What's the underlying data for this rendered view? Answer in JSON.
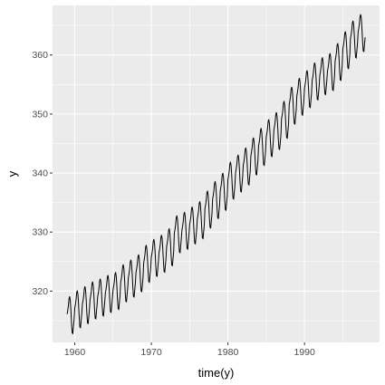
{
  "chart_data": {
    "type": "line",
    "xlabel": "time(y)",
    "ylabel": "y",
    "xlim": [
      1957.1,
      1999.8
    ],
    "ylim": [
      311.3,
      368.4
    ],
    "x_ticks": [
      1960,
      1970,
      1980,
      1990
    ],
    "y_ticks": [
      320,
      330,
      340,
      350,
      360
    ],
    "x_minor_ticks": [
      1965,
      1975,
      1985,
      1995
    ],
    "y_minor_ticks": [
      315,
      325,
      335,
      345,
      355,
      365
    ],
    "grid": true,
    "background": "#EBEBEB",
    "gridline_color": "#FFFFFF",
    "line_color": "#000000",
    "series": [
      {
        "x_start": 1959.0,
        "step": 0.0833333,
        "seasonal_cycle": [
          0.2,
          0.8,
          1.6,
          2.8,
          3.2,
          2.5,
          0.8,
          -1.4,
          -3.0,
          -3.1,
          -1.9,
          -0.7
        ],
        "annual_means": [
          315.9,
          316.9,
          317.6,
          318.4,
          318.9,
          319.5,
          320.0,
          321.3,
          322.1,
          323.0,
          324.6,
          325.6,
          326.3,
          327.4,
          329.6,
          330.2,
          331.1,
          332.0,
          333.8,
          335.4,
          336.8,
          338.7,
          339.9,
          341.1,
          342.8,
          344.4,
          345.9,
          347.1,
          349.0,
          351.4,
          352.9,
          354.2,
          355.5,
          356.4,
          357.1,
          358.8,
          360.8,
          362.6,
          363.7
        ]
      }
    ]
  }
}
